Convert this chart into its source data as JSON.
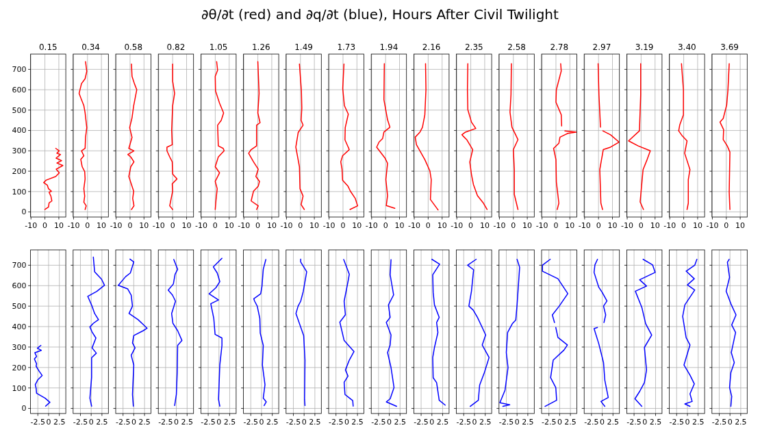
{
  "chart_data": [
    {
      "type": "other",
      "title": "∂θ/∂t (red) and ∂q/∂t (blue), Hours After Civil Twilight"
    },
    {
      "type": "line",
      "title": "0.15",
      "xlim": [
        -10.3,
        15
      ],
      "xticks": [
        -10,
        0,
        10
      ],
      "ylim": [
        -25,
        775
      ],
      "yticks": [
        0,
        100,
        200,
        300,
        400,
        500,
        600,
        700
      ],
      "grid": true,
      "series": [
        {
          "color": "#ff0000",
          "x": [
            0,
            2.6,
            3,
            5,
            4.3,
            3,
            4.7,
            2.6,
            1.7,
            -0.9,
            0.9,
            7.8,
            10.3,
            8.1,
            12.9,
            8.6,
            12,
            8,
            11.2,
            8.6,
            10.3,
            7.8
          ],
          "values": [
            12,
            24,
            44,
            54,
            78,
            96,
            102,
            114,
            132,
            144,
            156,
            174,
            192,
            210,
            228,
            240,
            252,
            264,
            282,
            288,
            300,
            312
          ]
        }
      ]
    },
    {
      "type": "line",
      "title": "0.34",
      "xlim": [
        -10.3,
        15
      ],
      "xticks": [
        -10,
        0,
        10
      ],
      "ylim": [
        -25,
        775
      ],
      "yticks": [
        0,
        100,
        200,
        300,
        400,
        500,
        600,
        700
      ],
      "grid": true,
      "tick_labels": "x",
      "series": [
        {
          "color": "#ff0000",
          "x": [
            -1.7,
            -0.9,
            -2.6,
            -2,
            -2.6,
            -1.7,
            -2,
            -3.8,
            -4.8,
            -2.6,
            -4.3,
            -1.7,
            -1.4,
            -0.5,
            -1.7,
            -2.6,
            -4.7,
            -6,
            -4.3,
            -1.7,
            -0.5,
            -1.4
          ],
          "values": [
            12,
            30,
            48,
            78,
            114,
            162,
            198,
            222,
            258,
            276,
            300,
            312,
            366,
            414,
            486,
            522,
            558,
            582,
            630,
            654,
            690,
            738
          ]
        }
      ]
    },
    {
      "type": "line",
      "title": "0.58",
      "xlim": [
        -10.3,
        15
      ],
      "xticks": [
        -10,
        0,
        10
      ],
      "ylim": [
        -25,
        775
      ],
      "yticks": [
        0,
        100,
        200,
        300,
        400,
        500,
        600,
        700
      ],
      "grid": true,
      "tick_labels": "x",
      "series": [
        {
          "color": "#ff0000",
          "x": [
            1,
            2.8,
            1.9,
            2.6,
            1.4,
            -0.9,
            0.5,
            2.8,
            0.5,
            -1.6,
            2.8,
            -0.9,
            1.4,
            -0.3,
            1.4,
            2.6,
            4.8,
            3.1,
            1.4,
            1
          ],
          "values": [
            12,
            30,
            66,
            102,
            126,
            174,
            222,
            246,
            270,
            282,
            300,
            312,
            366,
            414,
            462,
            522,
            600,
            630,
            666,
            726
          ]
        }
      ]
    },
    {
      "type": "line",
      "title": "0.82",
      "xlim": [
        -10.3,
        15
      ],
      "xticks": [
        -10,
        0,
        10
      ],
      "ylim": [
        -25,
        775
      ],
      "yticks": [
        0,
        100,
        200,
        300,
        400,
        500,
        600,
        700
      ],
      "grid": true,
      "tick_labels": "x",
      "series": [
        {
          "color": "#ff0000",
          "x": [
            0,
            -2.1,
            0,
            -0.3,
            3.1,
            0,
            -0.3,
            -2.1,
            -4.1,
            -4.1,
            -0.3,
            -0.7,
            0,
            1.4,
            0,
            0
          ],
          "values": [
            12,
            30,
            102,
            138,
            162,
            186,
            246,
            270,
            300,
            318,
            330,
            402,
            522,
            582,
            642,
            726
          ]
        }
      ]
    },
    {
      "type": "line",
      "title": "1.05",
      "xlim": [
        -10.3,
        15
      ],
      "xticks": [
        -10,
        0,
        10
      ],
      "ylim": [
        -25,
        775
      ],
      "yticks": [
        0,
        100,
        200,
        300,
        400,
        500,
        600,
        700
      ],
      "grid": true,
      "tick_labels": "x",
      "series": [
        {
          "color": "#ff0000",
          "x": [
            0,
            0.5,
            1.4,
            0,
            3.1,
            0,
            2.2,
            6.4,
            5.7,
            2.2,
            1.7,
            4.3,
            6,
            3.1,
            0.2,
            0,
            1.7,
            1
          ],
          "values": [
            12,
            54,
            114,
            150,
            192,
            222,
            270,
            300,
            312,
            324,
            426,
            450,
            486,
            534,
            594,
            666,
            696,
            738
          ]
        }
      ]
    },
    {
      "type": "line",
      "title": "1.26",
      "xlim": [
        -10.3,
        15
      ],
      "xticks": [
        -10,
        0,
        10
      ],
      "ylim": [
        -25,
        775
      ],
      "yticks": [
        0,
        100,
        200,
        300,
        400,
        500,
        600,
        700
      ],
      "grid": true,
      "tick_labels": "x",
      "series": [
        {
          "color": "#ff0000",
          "x": [
            -0.9,
            0.3,
            -4.8,
            -3.1,
            0.3,
            1.2,
            -1.4,
            0.3,
            -3.1,
            -6.6,
            -4.8,
            -0.9,
            -0.9,
            1.6,
            0,
            0.9,
            0
          ],
          "values": [
            12,
            30,
            54,
            102,
            126,
            150,
            174,
            210,
            246,
            288,
            306,
            324,
            426,
            438,
            486,
            582,
            738
          ]
        }
      ]
    },
    {
      "type": "line",
      "title": "1.49",
      "xlim": [
        -10.3,
        15
      ],
      "xticks": [
        -10,
        0,
        10
      ],
      "ylim": [
        -25,
        775
      ],
      "yticks": [
        0,
        100,
        200,
        300,
        400,
        500,
        600,
        700
      ],
      "grid": true,
      "tick_labels": "x",
      "series": [
        {
          "color": "#ff0000",
          "x": [
            2.8,
            0.5,
            1.9,
            -0.3,
            -0.7,
            -3.3,
            -1.6,
            1.9,
            0.5,
            1,
            0.7,
            -0.7
          ],
          "values": [
            12,
            36,
            78,
            114,
            222,
            318,
            390,
            426,
            450,
            510,
            594,
            726
          ]
        }
      ]
    },
    {
      "type": "line",
      "title": "1.73",
      "xlim": [
        -10.3,
        15
      ],
      "xticks": [
        -10,
        0,
        10
      ],
      "ylim": [
        -25,
        775
      ],
      "yticks": [
        0,
        100,
        200,
        300,
        400,
        500,
        600,
        700
      ],
      "grid": true,
      "tick_labels": "x",
      "series": [
        {
          "color": "#ff0000",
          "x": [
            5,
            10.5,
            8.8,
            5.3,
            3.6,
            -0.3,
            -0.7,
            -1.6,
            -0.3,
            4.5,
            1.4,
            1.6,
            3.8,
            1,
            -0.2,
            0.7
          ],
          "values": [
            12,
            30,
            66,
            102,
            126,
            156,
            210,
            246,
            276,
            306,
            354,
            414,
            480,
            522,
            606,
            726
          ]
        }
      ]
    },
    {
      "type": "line",
      "title": "1.94",
      "xlim": [
        -10.3,
        15
      ],
      "xticks": [
        -10,
        0,
        10
      ],
      "ylim": [
        -25,
        775
      ],
      "yticks": [
        0,
        100,
        200,
        300,
        400,
        500,
        600,
        700
      ],
      "grid": true,
      "tick_labels": "x",
      "series": [
        {
          "color": "#ff0000",
          "x": [
            6.6,
            0.5,
            1.4,
            0.2,
            1.4,
            -0.3,
            -6.4,
            -4.7,
            -2.1,
            -1.2,
            3.1,
            1.4,
            -1.2,
            -0.9
          ],
          "values": [
            18,
            31,
            80,
            159,
            239,
            263,
            318,
            343,
            361,
            392,
            416,
            453,
            551,
            728
          ]
        }
      ]
    },
    {
      "type": "line",
      "title": "2.16",
      "xlim": [
        -10.3,
        15
      ],
      "xticks": [
        -10,
        0,
        10
      ],
      "ylim": [
        -25,
        775
      ],
      "yticks": [
        0,
        100,
        200,
        300,
        400,
        500,
        600,
        700
      ],
      "grid": true,
      "tick_labels": "x",
      "series": [
        {
          "color": "#ff0000",
          "x": [
            7.1,
            1.6,
            2.2,
            1.2,
            -2.4,
            -8.4,
            -9.3,
            -5.9,
            -4.1,
            -2.4,
            -1.6,
            -1.9
          ],
          "values": [
            10,
            61,
            159,
            202,
            257,
            330,
            367,
            392,
            416,
            477,
            600,
            728
          ]
        }
      ]
    },
    {
      "type": "line",
      "title": "2.35",
      "xlim": [
        -10.3,
        15
      ],
      "xticks": [
        -10,
        0,
        10
      ],
      "ylim": [
        -25,
        775
      ],
      "yticks": [
        0,
        100,
        200,
        300,
        400,
        500,
        600,
        700
      ],
      "grid": true,
      "tick_labels": "x",
      "series": [
        {
          "color": "#ff0000",
          "x": [
            11.7,
            9.1,
            4.8,
            1.9,
            0.5,
            -0.7,
            1.4,
            -2.9,
            -4.7,
            -6.4,
            -3.8,
            3.6,
            0.5,
            -2.1,
            -2.4,
            -2.1
          ],
          "values": [
            12,
            43,
            80,
            135,
            184,
            245,
            306,
            355,
            367,
            379,
            392,
            410,
            441,
            502,
            600,
            728
          ]
        }
      ]
    },
    {
      "type": "line",
      "title": "2.58",
      "xlim": [
        -10.3,
        15
      ],
      "xticks": [
        -10,
        0,
        10
      ],
      "ylim": [
        -25,
        775
      ],
      "yticks": [
        0,
        100,
        200,
        300,
        400,
        500,
        600,
        700
      ],
      "grid": true,
      "tick_labels": "x",
      "series": [
        {
          "color": "#ff0000",
          "x": [
            3.3,
            0.7,
            0.7,
            0,
            3.3,
            0.7,
            -1,
            -2.4,
            -1.7,
            -1.4
          ],
          "values": [
            12,
            86,
            208,
            306,
            355,
            392,
            416,
            490,
            575,
            728
          ]
        }
      ]
    },
    {
      "type": "line",
      "title": "2.78",
      "xlim": [
        -10.3,
        15
      ],
      "xticks": [
        -10,
        0,
        10
      ],
      "ylim": [
        -25,
        775
      ],
      "yticks": [
        0,
        100,
        200,
        300,
        400,
        500,
        600,
        700
      ],
      "grid": true,
      "tick_labels": "x",
      "series": [
        {
          "color": "#ff0000",
          "x": [
            0.9,
            2.1,
            0.3,
            0,
            -1.7,
            2.1,
            2.9,
            6.4,
            8.6,
            14.5,
            6.4,
            null,
            4.1,
            3.8,
            0,
            0.3,
            3.8,
            3.4
          ],
          "values": [
            12,
            43,
            147,
            257,
            312,
            337,
            367,
            379,
            386,
            392,
            398,
            null,
            422,
            477,
            539,
            600,
            692,
            728
          ]
        }
      ]
    },
    {
      "type": "line",
      "title": "2.97",
      "xlim": [
        -10.3,
        15
      ],
      "xticks": [
        -10,
        0,
        10
      ],
      "ylim": [
        -25,
        775
      ],
      "yticks": [
        0,
        100,
        200,
        300,
        400,
        500,
        600,
        700
      ],
      "grid": true,
      "tick_labels": "x",
      "series": [
        {
          "color": "#ff0000",
          "x": [
            2.9,
            1.7,
            0.9,
            3.4,
            8.6,
            14.7,
            8.6,
            3.1,
            null,
            1.4,
            0.3,
            -0.3
          ],
          "values": [
            12,
            43,
            208,
            306,
            318,
            343,
            379,
            398,
            null,
            416,
            575,
            728
          ]
        }
      ]
    },
    {
      "type": "line",
      "title": "3.19",
      "xlim": [
        -10.3,
        15
      ],
      "xticks": [
        -10,
        0,
        10
      ],
      "ylim": [
        -25,
        775
      ],
      "yticks": [
        0,
        100,
        200,
        300,
        400,
        500,
        600,
        700
      ],
      "grid": true,
      "tick_labels": "x",
      "series": [
        {
          "color": "#ff0000",
          "x": [
            1.7,
            -0.7,
            1.4,
            4.3,
            6.6,
            -2.1,
            -9,
            -1.2,
            -0.3,
            -0.3
          ],
          "values": [
            12,
            49,
            208,
            257,
            300,
            324,
            349,
            398,
            575,
            728
          ]
        }
      ]
    },
    {
      "type": "line",
      "title": "3.40",
      "xlim": [
        -10.3,
        15
      ],
      "xticks": [
        -10,
        0,
        10
      ],
      "ylim": [
        -25,
        775
      ],
      "yticks": [
        0,
        100,
        200,
        300,
        400,
        500,
        600,
        700
      ],
      "grid": true,
      "tick_labels": "x",
      "series": [
        {
          "color": "#ff0000",
          "x": [
            2.4,
            3.3,
            3.3,
            4.5,
            0.7,
            2.4,
            -1,
            -3.6,
            -2.8,
            -0.2,
            -0.2,
            -1.6
          ],
          "values": [
            12,
            43,
            159,
            208,
            288,
            349,
            373,
            398,
            428,
            477,
            600,
            728
          ]
        }
      ]
    },
    {
      "type": "line",
      "title": "3.69",
      "xlim": [
        -10.3,
        15
      ],
      "xticks": [
        -10,
        0,
        10
      ],
      "ylim": [
        -25,
        775
      ],
      "yticks": [
        0,
        100,
        200,
        300,
        400,
        500,
        600,
        700
      ],
      "grid": true,
      "tick_labels": "x",
      "series": [
        {
          "color": "#ff0000",
          "x": [
            2.6,
            2.1,
            2.6,
            0.7,
            -2.2,
            -1.9,
            -4.5,
            -2.2,
            0.3,
            1.2,
            2.1
          ],
          "values": [
            12,
            98,
            294,
            324,
            355,
            404,
            441,
            459,
            526,
            600,
            728
          ]
        }
      ]
    },
    {
      "type": "line",
      "xlim": [
        -4.2,
        4
      ],
      "xticks": [
        -2.5,
        0,
        2.5
      ],
      "ylim": [
        -25,
        775
      ],
      "yticks": [
        0,
        100,
        200,
        300,
        400,
        500,
        600,
        700
      ],
      "grid": true,
      "series": [
        {
          "color": "#0000ff",
          "x": [
            -0.7,
            0.3,
            -0.8,
            -2.8,
            -2.9,
            -3.1,
            -2.5,
            -1.5,
            -2.2,
            -2.9,
            -2.8,
            -3.3,
            -2.8,
            -3.2,
            -1.7,
            -2.6,
            -1.8
          ],
          "values": [
            11,
            30,
            50,
            74,
            98,
            116,
            140,
            161,
            182,
            206,
            218,
            242,
            254,
            272,
            284,
            294,
            308
          ]
        }
      ]
    },
    {
      "type": "line",
      "xlim": [
        -4.2,
        4
      ],
      "xticks": [
        -2.5,
        0,
        2.5
      ],
      "ylim": [
        -25,
        775
      ],
      "yticks": [
        0,
        100,
        200,
        300,
        400,
        500,
        600,
        700
      ],
      "grid": true,
      "tick_labels": "x",
      "series": [
        {
          "color": "#0000ff",
          "x": [
            0.1,
            -0.3,
            0.1,
            0.1,
            1.2,
            0.2,
            1.1,
            0.2,
            -0.3,
            0.5,
            1.7,
            0.8,
            0.2,
            -0.8,
            1.3,
            3.1,
            2.4,
            0.8,
            0.5
          ],
          "values": [
            11,
            50,
            152,
            248,
            270,
            296,
            344,
            374,
            398,
            416,
            434,
            464,
            500,
            548,
            572,
            602,
            632,
            668,
            740
          ]
        }
      ]
    },
    {
      "type": "line",
      "xlim": [
        -4.2,
        4
      ],
      "xticks": [
        -2.5,
        0,
        2.5
      ],
      "ylim": [
        -25,
        775
      ],
      "yticks": [
        0,
        100,
        200,
        300,
        400,
        500,
        600,
        700
      ],
      "grid": true,
      "tick_labels": "x",
      "series": [
        {
          "color": "#0000ff",
          "x": [
            -0.1,
            -0.3,
            0,
            -0.6,
            0.3,
            -0.3,
            0,
            2.2,
            3.1,
            2.2,
            1,
            -1.1,
            -0.3,
            -0.6,
            -1.4,
            -3.6,
            -1.9,
            -0.8,
            0,
            -0.9
          ],
          "values": [
            11,
            68,
            212,
            260,
            296,
            320,
            356,
            380,
            392,
            410,
            434,
            464,
            500,
            554,
            584,
            602,
            644,
            662,
            716,
            730
          ]
        }
      ]
    },
    {
      "type": "line",
      "xlim": [
        -4.2,
        4
      ],
      "xticks": [
        -2.5,
        0,
        2.5
      ],
      "ylim": [
        -25,
        775
      ],
      "yticks": [
        0,
        100,
        200,
        300,
        400,
        500,
        600,
        700
      ],
      "grid": true,
      "tick_labels": "x",
      "series": [
        {
          "color": "#0000ff",
          "x": [
            -0.4,
            0,
            0.2,
            0.3,
            1.3,
            0.3,
            -0.8,
            -1.1,
            -0.2,
            -0.9,
            -1.9,
            -0.7,
            -0.3,
            0.3,
            -0.6
          ],
          "values": [
            14,
            68,
            176,
            308,
            332,
            380,
            416,
            464,
            524,
            554,
            578,
            608,
            656,
            680,
            728
          ]
        }
      ]
    },
    {
      "type": "line",
      "xlim": [
        -4.2,
        4
      ],
      "xticks": [
        -2.5,
        0,
        2.5
      ],
      "ylim": [
        -25,
        775
      ],
      "yticks": [
        0,
        100,
        200,
        300,
        400,
        500,
        600,
        700
      ],
      "grid": true,
      "tick_labels": "x",
      "series": [
        {
          "color": "#0000ff",
          "x": [
            0.2,
            -0.1,
            0.2,
            0.7,
            0.7,
            -0.9,
            -1.2,
            -1.9,
            -0.1,
            -2.3,
            -0.7,
            0.2,
            -0.4,
            -1.3,
            0.7
          ],
          "values": [
            11,
            44,
            212,
            308,
            344,
            362,
            440,
            512,
            530,
            560,
            590,
            620,
            662,
            692,
            734
          ]
        }
      ]
    },
    {
      "type": "line",
      "xlim": [
        -4.2,
        4
      ],
      "xticks": [
        -2.5,
        0,
        2.5
      ],
      "ylim": [
        -25,
        775
      ],
      "yticks": [
        0,
        100,
        200,
        300,
        400,
        500,
        600,
        700
      ],
      "grid": true,
      "tick_labels": "x",
      "series": [
        {
          "color": "#0000ff",
          "x": [
            0.6,
            1.1,
            0.4,
            0.8,
            0.2,
            0.4,
            -0.3,
            -0.4,
            -1,
            -1.6,
            -1.8,
            -0.2,
            0.1,
            0.4,
            1
          ],
          "values": [
            14,
            32,
            50,
            116,
            212,
            308,
            368,
            440,
            500,
            524,
            536,
            560,
            596,
            680,
            728
          ]
        }
      ]
    },
    {
      "type": "line",
      "xlim": [
        -4.2,
        4
      ],
      "xticks": [
        -2.5,
        0,
        2.5
      ],
      "ylim": [
        -25,
        775
      ],
      "yticks": [
        0,
        100,
        200,
        300,
        400,
        500,
        600,
        700
      ],
      "grid": true,
      "tick_labels": "x",
      "series": [
        {
          "color": "#0000ff",
          "x": [
            0.2,
            0.1,
            0.2,
            -0.1,
            -1.3,
            -1.9,
            -1.4,
            -0.8,
            -0.2,
            0.6,
            -0.8,
            -0.8
          ],
          "values": [
            14,
            44,
            236,
            356,
            428,
            464,
            500,
            524,
            572,
            668,
            716,
            730
          ]
        }
      ]
    },
    {
      "type": "line",
      "xlim": [
        -4.2,
        4
      ],
      "xticks": [
        -2.5,
        0,
        2.5
      ],
      "ylim": [
        -25,
        775
      ],
      "yticks": [
        0,
        100,
        200,
        300,
        400,
        500,
        600,
        700
      ],
      "grid": true,
      "tick_labels": "x",
      "series": [
        {
          "color": "#0000ff",
          "x": [
            1.5,
            1.4,
            -0.4,
            -0.6,
            0.3,
            -0.3,
            0.6,
            1.7,
            -0.6,
            -1.6,
            -0.3,
            -0.6,
            0.3,
            0.6,
            -0.7
          ],
          "values": [
            11,
            38,
            68,
            128,
            158,
            188,
            236,
            278,
            332,
            422,
            458,
            524,
            620,
            656,
            728
          ]
        }
      ]
    },
    {
      "type": "line",
      "xlim": [
        -4.2,
        4
      ],
      "xticks": [
        -2.5,
        0,
        2.5
      ],
      "ylim": [
        -25,
        775
      ],
      "yticks": [
        0,
        100,
        200,
        300,
        400,
        500,
        600,
        700
      ],
      "grid": true,
      "tick_labels": "x",
      "series": [
        {
          "color": "#0000ff",
          "x": [
            1.7,
            -0.7,
            0.2,
            1.1,
            0.4,
            -0.4,
            0.2,
            0.4,
            -0.7,
            0.2,
            -0.2,
            1,
            0.2,
            0.4
          ],
          "values": [
            10,
            32,
            47,
            102,
            200,
            273,
            310,
            359,
            420,
            445,
            506,
            555,
            653,
            727
          ]
        }
      ]
    },
    {
      "type": "line",
      "xlim": [
        -4.2,
        4
      ],
      "xticks": [
        -2.5,
        0,
        2.5
      ],
      "ylim": [
        -25,
        775
      ],
      "yticks": [
        0,
        100,
        200,
        300,
        400,
        500,
        600,
        700
      ],
      "grid": true,
      "tick_labels": "x",
      "series": [
        {
          "color": "#0000ff",
          "x": [
            3.1,
            1.7,
            1.1,
            0.3,
            0.2,
            0.6,
            1.4,
            1.1,
            1.7,
            0.6,
            0.3,
            0.2,
            1.8,
            0
          ],
          "values": [
            16,
            40,
            126,
            150,
            249,
            298,
            371,
            420,
            445,
            506,
            567,
            653,
            705,
            729
          ]
        }
      ]
    },
    {
      "type": "line",
      "xlim": [
        -4.2,
        4
      ],
      "xticks": [
        -2.5,
        0,
        2.5
      ],
      "ylim": [
        -25,
        775
      ],
      "yticks": [
        0,
        100,
        200,
        300,
        400,
        500,
        600,
        700
      ],
      "grid": true,
      "tick_labels": "x",
      "series": [
        {
          "color": "#0000ff",
          "x": [
            -1,
            0.9,
            1.2,
            2.3,
            3.4,
            1.8,
            2.6,
            1.8,
            0.7,
            -0.3,
            -1.3,
            -0.7,
            -0.2,
            -1.6,
            0.4
          ],
          "values": [
            10,
            40,
            114,
            175,
            249,
            310,
            359,
            396,
            445,
            481,
            500,
            573,
            678,
            700,
            729
          ]
        }
      ]
    },
    {
      "type": "line",
      "xlim": [
        -4.2,
        4
      ],
      "xticks": [
        -2.5,
        0,
        2.5
      ],
      "ylim": [
        -25,
        775
      ],
      "yticks": [
        0,
        100,
        200,
        300,
        400,
        500,
        600,
        700
      ],
      "grid": true,
      "tick_labels": "x",
      "series": [
        {
          "color": "#0000ff",
          "x": [
            -3.3,
            -1.7,
            -4,
            -2.8,
            -2.1,
            -2.5,
            -2.2,
            -1.1,
            -0.3,
            0,
            0.6,
            0
          ],
          "values": [
            10,
            18,
            28,
            89,
            200,
            273,
            371,
            414,
            432,
            506,
            690,
            729
          ]
        }
      ]
    },
    {
      "type": "line",
      "xlim": [
        -4.2,
        4
      ],
      "xticks": [
        -2.5,
        0,
        2.5
      ],
      "ylim": [
        -25,
        775
      ],
      "yticks": [
        0,
        100,
        200,
        300,
        400,
        500,
        600,
        700
      ],
      "grid": true,
      "tick_labels": "x",
      "series": [
        {
          "color": "#0000ff",
          "x": [
            -3.4,
            -0.7,
            -0.9,
            -2.1,
            -1.5,
            1,
            1.8,
            -0.4,
            -0.9,
            null,
            -1.2,
            -1.7,
            -0.1,
            1.9,
            -0.4,
            -4,
            -4,
            -2.2
          ],
          "values": [
            10,
            40,
            102,
            150,
            236,
            285,
            310,
            347,
            396,
            null,
            420,
            457,
            500,
            561,
            634,
            671,
            700,
            729
          ]
        }
      ]
    },
    {
      "type": "line",
      "xlim": [
        -4.2,
        4
      ],
      "xticks": [
        -2.5,
        0,
        2.5
      ],
      "ylim": [
        -25,
        775
      ],
      "yticks": [
        0,
        100,
        200,
        300,
        400,
        500,
        600,
        700
      ],
      "grid": true,
      "tick_labels": "x",
      "series": [
        {
          "color": "#0000ff",
          "x": [
            0.6,
            -0.3,
            1.4,
            0.6,
            0.3,
            -0.8,
            -1.9,
            -1.1,
            null,
            0.4,
            0.8,
            0.3,
            1.1,
            0,
            -0.8,
            -1.9,
            -1.7,
            -1.1
          ],
          "values": [
            10,
            34,
            53,
            138,
            224,
            316,
            390,
            396,
            null,
            420,
            457,
            500,
            525,
            567,
            592,
            665,
            702,
            729
          ]
        }
      ]
    },
    {
      "type": "line",
      "xlim": [
        -4.2,
        4
      ],
      "xticks": [
        -2.5,
        0,
        2.5
      ],
      "ylim": [
        -25,
        775
      ],
      "yticks": [
        0,
        100,
        200,
        300,
        400,
        500,
        600,
        700
      ],
      "grid": true,
      "tick_labels": "x",
      "series": [
        {
          "color": "#0000ff",
          "x": [
            -0.7,
            -2.3,
            -1.2,
            -0.1,
            0.4,
            -0.1,
            1.6,
            0.2,
            -0.7,
            -2.2,
            0.4,
            -1.2,
            2.4,
            1.8,
            -0.4
          ],
          "values": [
            10,
            47,
            83,
            126,
            188,
            298,
            359,
            414,
            494,
            573,
            598,
            629,
            665,
            702,
            729
          ]
        }
      ]
    },
    {
      "type": "line",
      "xlim": [
        -4.2,
        4
      ],
      "xticks": [
        -2.5,
        0,
        2.5
      ],
      "ylim": [
        -25,
        775
      ],
      "yticks": [
        0,
        100,
        200,
        300,
        400,
        500,
        600,
        700
      ],
      "grid": true,
      "tick_labels": "x",
      "series": [
        {
          "color": "#0000ff",
          "x": [
            0.6,
            -0.6,
            1.1,
            0.6,
            1.6,
            0.6,
            -0.8,
            -0.1,
            0.6,
            -0.3,
            -1.1,
            -0.6,
            1.7,
            0,
            1.6,
            -0.3,
            1.7,
            2.2
          ],
          "values": [
            10,
            22,
            34,
            71,
            120,
            163,
            212,
            261,
            310,
            346,
            450,
            506,
            579,
            604,
            634,
            671,
            700,
            729
          ]
        }
      ]
    },
    {
      "type": "line",
      "xlim": [
        -4.2,
        4
      ],
      "xticks": [
        -2.5,
        0,
        2.5
      ],
      "ylim": [
        -25,
        775
      ],
      "yticks": [
        0,
        100,
        200,
        300,
        400,
        500,
        600,
        700
      ],
      "grid": true,
      "tick_labels": "x",
      "series": [
        {
          "color": "#0000ff",
          "x": [
            0.2,
            0.4,
            -0.1,
            0.2,
            1,
            0.3,
            1.3,
            0.4,
            1.4,
            0.2,
            -0.9,
            -0.1,
            -0.6,
            -0.2
          ],
          "values": [
            10,
            59,
            102,
            175,
            224,
            273,
            371,
            408,
            457,
            512,
            573,
            641,
            714,
            729
          ]
        }
      ]
    }
  ]
}
